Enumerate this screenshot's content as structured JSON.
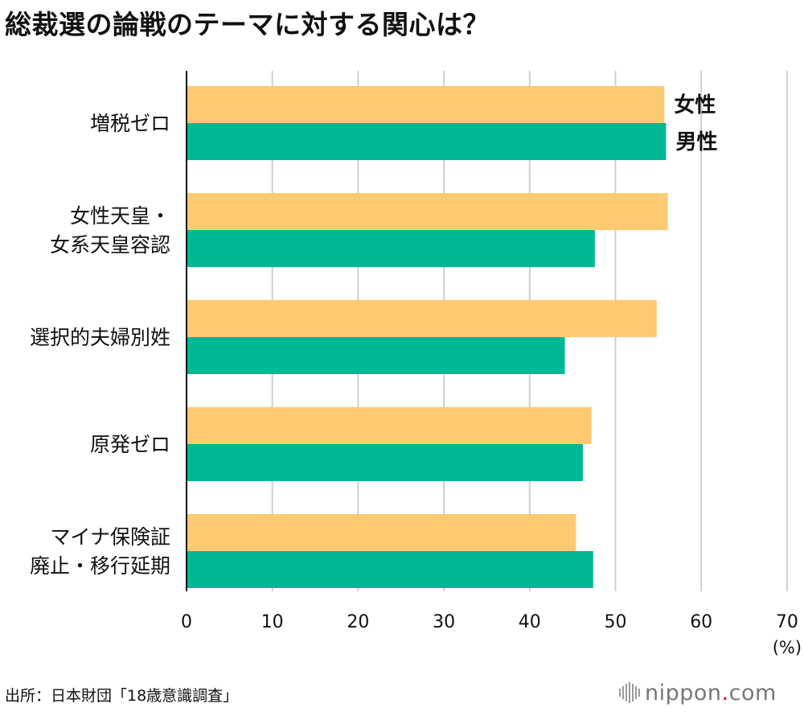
{
  "title": "総裁選の論戦のテーマに対する関心は？",
  "source": "出所：日本財団「18歳意識調査」",
  "logo": {
    "name": "nippon",
    "dot": ".",
    "suffix": "com"
  },
  "colors": {
    "female": "#FDCA72",
    "male": "#00B994",
    "grid": "#cfcfcf",
    "axis": "#111111"
  },
  "chart_data": {
    "type": "bar",
    "orientation": "horizontal",
    "categories": [
      [
        "増税ゼロ"
      ],
      [
        "女性天皇・",
        "女系天皇容認"
      ],
      [
        "選択的夫婦別姓"
      ],
      [
        "原発ゼロ"
      ],
      [
        "マイナ保険証",
        "廃止・移行延期"
      ]
    ],
    "series": [
      {
        "name": "女性",
        "values": [
          55.7,
          56.1,
          54.8,
          47.2,
          45.4
        ]
      },
      {
        "name": "男性",
        "values": [
          55.9,
          47.6,
          44.1,
          46.2,
          47.4
        ]
      }
    ],
    "xlim": [
      0,
      70
    ],
    "xticks": [
      0,
      10,
      20,
      30,
      40,
      50,
      60,
      70
    ],
    "unit_label": "(%)",
    "grid": true,
    "legend_placement": "inline-first-group"
  }
}
